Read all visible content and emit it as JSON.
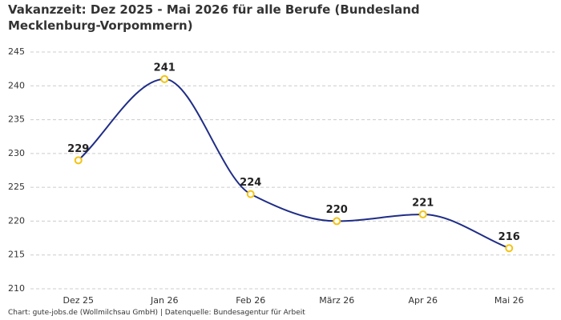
{
  "chart_data": {
    "type": "line",
    "title": "Vakanzzeit: Dez 2025 - Mai 2026 für alle Berufe (Bundesland Mecklenburg-Vorpommern)",
    "source": "Chart: gute-jobs.de (Wollmilchsau GmbH) | Datenquelle: Bundesagentur für Arbeit",
    "categories": [
      "Dez 25",
      "Jan 26",
      "Feb 26",
      "März 26",
      "Apr 26",
      "Mai 26"
    ],
    "values": [
      229,
      241,
      224,
      220,
      221,
      216
    ],
    "color": "#1f2d86",
    "marker_color": "#f2c414",
    "ylim": [
      210,
      245
    ],
    "yticks": [
      210,
      215,
      220,
      225,
      230,
      235,
      240,
      245
    ],
    "grid": true
  }
}
